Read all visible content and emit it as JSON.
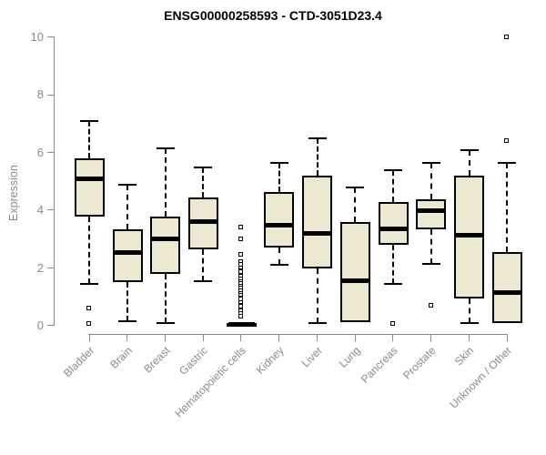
{
  "title": "ENSG00000258593 - CTD-3051D23.4",
  "colors": {
    "box_fill": "#EDE8D1",
    "box_border": "#000000",
    "median": "#000000",
    "whisker": "#000000",
    "axis": "#8A8A8A",
    "tick_label": "#8A8A8A",
    "title": "#000000",
    "background": "#FFFFFF"
  },
  "chart_data": {
    "type": "boxplot",
    "title": "ENSG00000258593 - CTD-3051D23.4",
    "xlabel": "",
    "ylabel": "Expression",
    "ylim": [
      0,
      10
    ],
    "yticks": [
      "0",
      "2",
      "4",
      "6",
      "8",
      "10"
    ],
    "grid": false,
    "legend": "none",
    "categories": [
      "Bladder",
      "Brain",
      "Breast",
      "Gastric",
      "Hematopoietic cells",
      "Kidney",
      "Liver",
      "Lung",
      "Pancreas",
      "Prostate",
      "Skin",
      "Unknown / Other"
    ],
    "boxes": [
      {
        "name": "Bladder",
        "min": 1.45,
        "q1": 3.8,
        "median": 5.1,
        "q3": 5.8,
        "max": 7.1,
        "outliers": [
          0.6,
          0.05
        ]
      },
      {
        "name": "Brain",
        "min": 0.15,
        "q1": 1.5,
        "median": 2.55,
        "q3": 3.35,
        "max": 4.9,
        "outliers": []
      },
      {
        "name": "Breast",
        "min": 0.1,
        "q1": 1.8,
        "median": 3.0,
        "q3": 3.8,
        "max": 6.15,
        "outliers": []
      },
      {
        "name": "Gastric",
        "min": 1.55,
        "q1": 2.65,
        "median": 3.6,
        "q3": 4.45,
        "max": 5.5,
        "outliers": []
      },
      {
        "name": "Hematopoietic cells",
        "min": 0,
        "q1": 0,
        "median": 0.05,
        "q3": 0.1,
        "max": 0.15,
        "outliers": [
          3.4,
          3.0,
          2.45,
          2.2,
          2.1,
          2.0,
          1.9,
          1.85,
          1.75,
          1.7,
          1.6,
          1.5,
          1.45,
          1.35,
          1.3,
          1.2,
          1.1,
          1.05,
          0.95,
          0.9,
          0.8,
          0.7,
          0.65,
          0.55,
          0.5,
          0.4,
          0.3
        ]
      },
      {
        "name": "Kidney",
        "min": 2.1,
        "q1": 2.7,
        "median": 3.5,
        "q3": 4.65,
        "max": 5.65,
        "outliers": []
      },
      {
        "name": "Liver",
        "min": 0.1,
        "q1": 2.0,
        "median": 3.2,
        "q3": 5.2,
        "max": 6.5,
        "outliers": []
      },
      {
        "name": "Lung",
        "min": 0.05,
        "q1": 0.13,
        "median": 1.55,
        "q3": 3.6,
        "max": 4.8,
        "outliers": []
      },
      {
        "name": "Pancreas",
        "min": 1.45,
        "q1": 2.8,
        "median": 3.35,
        "q3": 4.3,
        "max": 5.4,
        "outliers": [
          0.05
        ]
      },
      {
        "name": "Prostate",
        "min": 2.15,
        "q1": 3.35,
        "median": 4.0,
        "q3": 4.4,
        "max": 5.65,
        "outliers": [
          0.7
        ]
      },
      {
        "name": "Skin",
        "min": 0.1,
        "q1": 0.95,
        "median": 3.15,
        "q3": 5.2,
        "max": 6.1,
        "outliers": []
      },
      {
        "name": "Unknown / Other",
        "min": 0.05,
        "q1": 0.1,
        "median": 1.15,
        "q3": 2.55,
        "max": 5.65,
        "outliers": [
          10.0,
          6.4
        ]
      }
    ]
  }
}
